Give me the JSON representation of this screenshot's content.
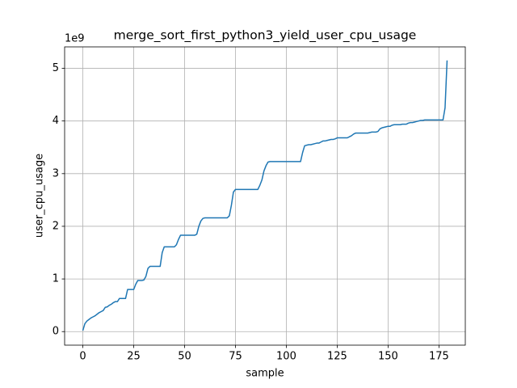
{
  "chart_data": {
    "type": "line",
    "title": "merge_sort_first_python3_yield_user_cpu_usage",
    "xlabel": "sample",
    "ylabel": "user_cpu_usage",
    "y_offset_label": "1e9",
    "xlim": [
      -8.95,
      187.95
    ],
    "ylim": [
      -0.2575,
      5.4075
    ],
    "xticks": [
      0,
      25,
      50,
      75,
      100,
      125,
      150,
      175
    ],
    "yticks": [
      0,
      1,
      2,
      3,
      4,
      5
    ],
    "grid": true,
    "series": [
      {
        "name": "user_cpu_usage",
        "color": "#1f77b4",
        "x": [
          0,
          1,
          2,
          3,
          4,
          5,
          6,
          7,
          8,
          9,
          10,
          11,
          12,
          13,
          14,
          15,
          16,
          17,
          18,
          19,
          20,
          21,
          22,
          23,
          24,
          25,
          26,
          27,
          28,
          29,
          30,
          31,
          32,
          33,
          34,
          35,
          36,
          37,
          38,
          39,
          40,
          41,
          42,
          43,
          44,
          45,
          46,
          47,
          48,
          49,
          50,
          51,
          52,
          53,
          54,
          55,
          56,
          57,
          58,
          59,
          60,
          61,
          62,
          63,
          64,
          65,
          66,
          67,
          68,
          69,
          70,
          71,
          72,
          73,
          74,
          75,
          76,
          77,
          78,
          79,
          80,
          81,
          82,
          83,
          84,
          85,
          86,
          87,
          88,
          89,
          90,
          91,
          92,
          93,
          94,
          95,
          96,
          97,
          98,
          99,
          100,
          101,
          102,
          103,
          104,
          105,
          106,
          107,
          108,
          109,
          110,
          111,
          112,
          113,
          114,
          115,
          116,
          117,
          118,
          119,
          120,
          121,
          122,
          123,
          124,
          125,
          126,
          127,
          128,
          129,
          130,
          131,
          132,
          133,
          134,
          135,
          136,
          137,
          138,
          139,
          140,
          141,
          142,
          143,
          144,
          145,
          146,
          147,
          148,
          149,
          150,
          151,
          152,
          153,
          154,
          155,
          156,
          157,
          158,
          159,
          160,
          161,
          162,
          163,
          164,
          165,
          166,
          167,
          168,
          169,
          170,
          171,
          172,
          173,
          174,
          175,
          176,
          177,
          178,
          179
        ],
        "values": [
          0.02,
          0.15,
          0.2,
          0.23,
          0.26,
          0.28,
          0.3,
          0.33,
          0.36,
          0.38,
          0.4,
          0.46,
          0.47,
          0.5,
          0.52,
          0.55,
          0.57,
          0.57,
          0.63,
          0.63,
          0.63,
          0.63,
          0.8,
          0.8,
          0.8,
          0.8,
          0.9,
          0.97,
          0.97,
          0.97,
          0.98,
          1.05,
          1.2,
          1.24,
          1.24,
          1.24,
          1.24,
          1.24,
          1.24,
          1.5,
          1.61,
          1.61,
          1.61,
          1.61,
          1.61,
          1.61,
          1.65,
          1.75,
          1.83,
          1.83,
          1.83,
          1.83,
          1.83,
          1.83,
          1.83,
          1.83,
          1.85,
          2.0,
          2.1,
          2.15,
          2.16,
          2.16,
          2.16,
          2.16,
          2.16,
          2.16,
          2.16,
          2.16,
          2.16,
          2.16,
          2.16,
          2.16,
          2.2,
          2.4,
          2.65,
          2.7,
          2.7,
          2.7,
          2.7,
          2.7,
          2.7,
          2.7,
          2.7,
          2.7,
          2.7,
          2.7,
          2.7,
          2.78,
          2.88,
          3.05,
          3.15,
          3.22,
          3.23,
          3.23,
          3.23,
          3.23,
          3.23,
          3.23,
          3.23,
          3.23,
          3.23,
          3.23,
          3.23,
          3.23,
          3.23,
          3.23,
          3.23,
          3.23,
          3.4,
          3.53,
          3.54,
          3.55,
          3.55,
          3.56,
          3.57,
          3.58,
          3.58,
          3.6,
          3.62,
          3.62,
          3.63,
          3.64,
          3.65,
          3.65,
          3.66,
          3.68,
          3.68,
          3.68,
          3.68,
          3.68,
          3.68,
          3.7,
          3.72,
          3.75,
          3.77,
          3.77,
          3.77,
          3.77,
          3.77,
          3.77,
          3.77,
          3.78,
          3.79,
          3.79,
          3.79,
          3.8,
          3.85,
          3.87,
          3.88,
          3.89,
          3.9,
          3.9,
          3.92,
          3.93,
          3.93,
          3.93,
          3.93,
          3.94,
          3.94,
          3.94,
          3.96,
          3.97,
          3.97,
          3.98,
          3.99,
          4.0,
          4.01,
          4.01,
          4.02,
          4.02,
          4.02,
          4.02,
          4.02,
          4.02,
          4.02,
          4.02,
          4.02,
          4.02,
          4.25,
          5.15
        ]
      }
    ]
  }
}
